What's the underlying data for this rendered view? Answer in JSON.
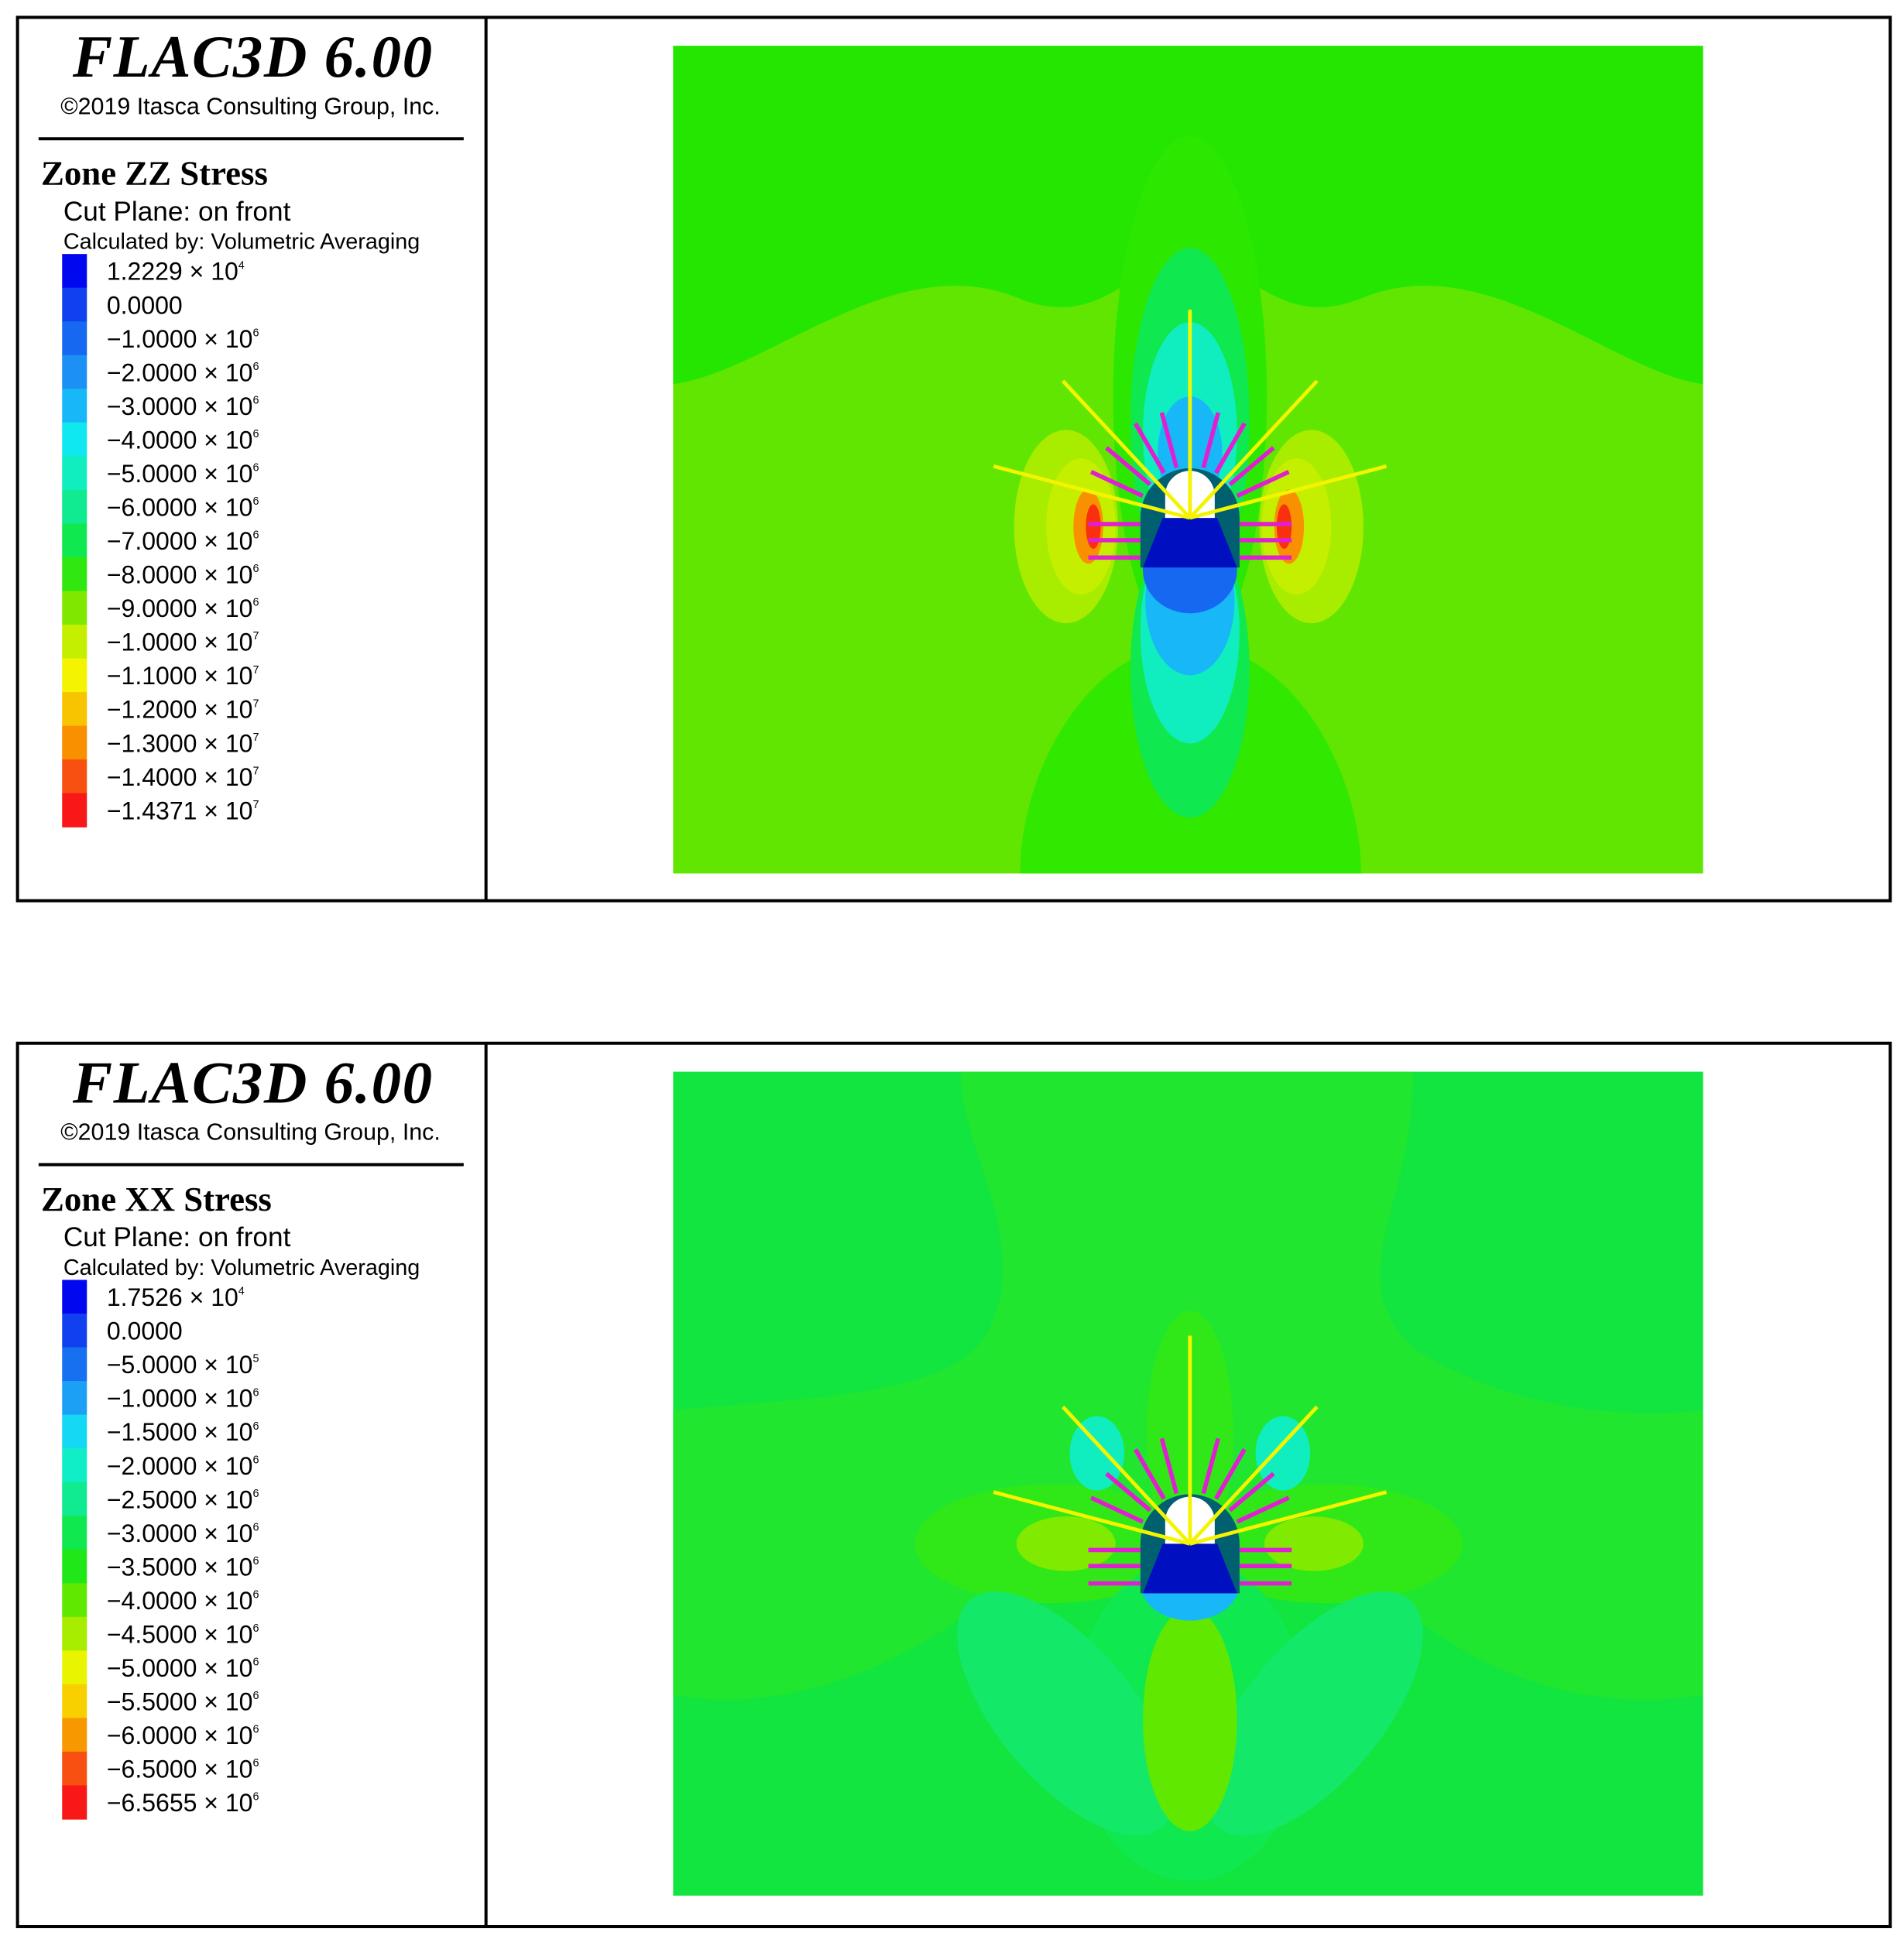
{
  "panels": [
    {
      "software": "FLAC3D 6.00",
      "copyright": "©2019 Itasca Consulting Group, Inc.",
      "title": "Zone ZZ Stress",
      "cut_plane": "Cut Plane: on front",
      "calculated_by": "Calculated by: Volumetric Averaging",
      "legend": [
        {
          "label": "1.2229 × 10",
          "exponent": "4",
          "color": "#0008f0"
        },
        {
          "label": "0.0000",
          "color": "#1040f0"
        },
        {
          "label": "−1.0000 × 10",
          "exponent": "6",
          "color": "#1668f0"
        },
        {
          "label": "−2.0000 × 10",
          "exponent": "6",
          "color": "#1c90f4"
        },
        {
          "label": "−3.0000 × 10",
          "exponent": "6",
          "color": "#18b8f8"
        },
        {
          "label": "−4.0000 × 10",
          "exponent": "6",
          "color": "#10e8f0"
        },
        {
          "label": "−5.0000 × 10",
          "exponent": "6",
          "color": "#10eec0"
        },
        {
          "label": "−6.0000 × 10",
          "exponent": "6",
          "color": "#10ea90"
        },
        {
          "label": "−7.0000 × 10",
          "exponent": "6",
          "color": "#10e850"
        },
        {
          "label": "−8.0000 × 10",
          "exponent": "6",
          "color": "#30e810"
        },
        {
          "label": "−9.0000 × 10",
          "exponent": "6",
          "color": "#80e800"
        },
        {
          "label": "−1.0000 × 10",
          "exponent": "7",
          "color": "#c4f000"
        },
        {
          "label": "−1.1000 × 10",
          "exponent": "7",
          "color": "#f4f400"
        },
        {
          "label": "−1.2000 × 10",
          "exponent": "7",
          "color": "#f8c400"
        },
        {
          "label": "−1.3000 × 10",
          "exponent": "7",
          "color": "#f89000"
        },
        {
          "label": "−1.4000 × 10",
          "exponent": "7",
          "color": "#f85010"
        },
        {
          "label": "−1.4371 × 10",
          "exponent": "7",
          "color": "#f81818"
        }
      ]
    },
    {
      "software": "FLAC3D 6.00",
      "copyright": "©2019 Itasca Consulting Group, Inc.",
      "title": "Zone XX Stress",
      "cut_plane": "Cut Plane: on front",
      "calculated_by": "Calculated by: Volumetric Averaging",
      "legend": [
        {
          "label": "1.7526 × 10",
          "exponent": "4",
          "color": "#0008f0"
        },
        {
          "label": "0.0000",
          "color": "#1040f0"
        },
        {
          "label": "−5.0000 × 10",
          "exponent": "5",
          "color": "#1670f0"
        },
        {
          "label": "−1.0000 × 10",
          "exponent": "6",
          "color": "#1ca0f6"
        },
        {
          "label": "−1.5000 × 10",
          "exponent": "6",
          "color": "#14d8f4"
        },
        {
          "label": "−2.0000 × 10",
          "exponent": "6",
          "color": "#10eec8"
        },
        {
          "label": "−2.5000 × 10",
          "exponent": "6",
          "color": "#10ea90"
        },
        {
          "label": "−3.0000 × 10",
          "exponent": "6",
          "color": "#10e850"
        },
        {
          "label": "−3.5000 × 10",
          "exponent": "6",
          "color": "#20e818"
        },
        {
          "label": "−4.0000 × 10",
          "exponent": "6",
          "color": "#60e800"
        },
        {
          "label": "−4.5000 × 10",
          "exponent": "6",
          "color": "#a8ec00"
        },
        {
          "label": "−5.0000 × 10",
          "exponent": "6",
          "color": "#e8f400"
        },
        {
          "label": "−5.5000 × 10",
          "exponent": "6",
          "color": "#f8d000"
        },
        {
          "label": "−6.0000 × 10",
          "exponent": "6",
          "color": "#f89800"
        },
        {
          "label": "−6.5000 × 10",
          "exponent": "6",
          "color": "#f85010"
        },
        {
          "label": "−6.5655 × 10",
          "exponent": "6",
          "color": "#f81818"
        }
      ]
    }
  ]
}
